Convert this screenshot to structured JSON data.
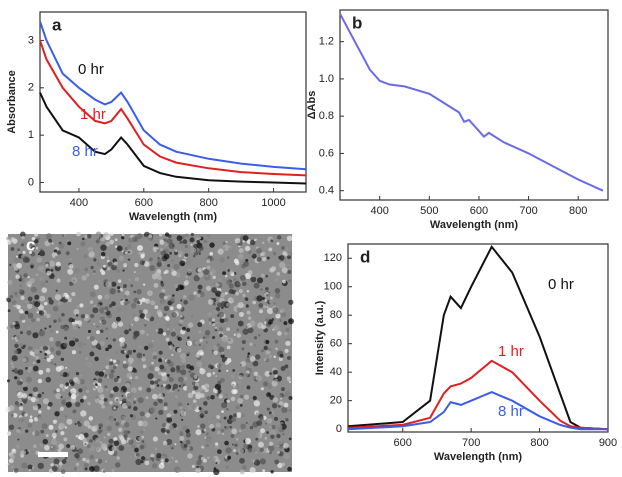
{
  "chart_data": [
    {
      "type": "line",
      "label": "a",
      "xlabel": "Wavelength (nm)",
      "ylabel": "Absorbance",
      "xlim": [
        280,
        1100
      ],
      "xticks": [
        400,
        600,
        800,
        1000
      ],
      "ylim": [
        -0.2,
        3.6
      ],
      "yticks": [
        0,
        1,
        2,
        3
      ],
      "x": [
        280,
        300,
        350,
        400,
        450,
        480,
        500,
        530,
        550,
        600,
        650,
        700,
        800,
        900,
        1000,
        1100
      ],
      "series": [
        {
          "name": "0 hr",
          "color": "#111111",
          "values": [
            1.9,
            1.6,
            1.1,
            0.95,
            0.65,
            0.6,
            0.7,
            0.95,
            0.8,
            0.35,
            0.2,
            0.12,
            0.05,
            0.02,
            0.0,
            -0.02
          ]
        },
        {
          "name": "1 hr",
          "color": "#e02020",
          "values": [
            3.0,
            2.6,
            2.0,
            1.6,
            1.3,
            1.25,
            1.3,
            1.55,
            1.35,
            0.8,
            0.55,
            0.42,
            0.3,
            0.22,
            0.18,
            0.15
          ]
        },
        {
          "name": "8 hr",
          "color": "#3a5ee8",
          "values": [
            3.4,
            3.0,
            2.3,
            2.0,
            1.75,
            1.65,
            1.7,
            1.9,
            1.7,
            1.1,
            0.8,
            0.65,
            0.5,
            0.4,
            0.33,
            0.28
          ]
        }
      ]
    },
    {
      "type": "line",
      "label": "b",
      "xlabel": "Wavelength (nm)",
      "ylabel": "ΔAbs",
      "xlim": [
        320,
        860
      ],
      "xticks": [
        400,
        500,
        600,
        700,
        800
      ],
      "ylim": [
        0.35,
        1.37
      ],
      "yticks": [
        0.4,
        0.6,
        0.8,
        {
          "value": 1,
          "label": "1.0"
        },
        1.2
      ],
      "x": [
        320,
        350,
        380,
        400,
        420,
        450,
        500,
        530,
        560,
        570,
        580,
        600,
        610,
        620,
        650,
        700,
        750,
        800,
        850
      ],
      "series": [
        {
          "color": "#6a6ae8",
          "values": [
            1.35,
            1.2,
            1.05,
            0.99,
            0.97,
            0.96,
            0.92,
            0.87,
            0.82,
            0.77,
            0.78,
            0.72,
            0.69,
            0.71,
            0.66,
            0.6,
            0.53,
            0.46,
            0.4
          ]
        }
      ]
    },
    {
      "type": "line",
      "label": "d",
      "xlabel": "Wavelength (nm)",
      "ylabel": "Intensity (a.u.)",
      "xlim": [
        520,
        900
      ],
      "xticks": [
        600,
        700,
        800,
        900
      ],
      "ylim": [
        -2,
        130
      ],
      "yticks": [
        0,
        20,
        40,
        60,
        80,
        100,
        120
      ],
      "x": [
        520,
        600,
        640,
        660,
        670,
        685,
        700,
        730,
        760,
        800,
        830,
        845,
        860,
        900
      ],
      "series": [
        {
          "name": "0 hr",
          "color": "#111111",
          "values": [
            2,
            5,
            20,
            80,
            93,
            85,
            100,
            128,
            110,
            65,
            25,
            5,
            1,
            0
          ]
        },
        {
          "name": "1 hr",
          "color": "#e02020",
          "values": [
            1,
            3,
            8,
            25,
            30,
            32,
            36,
            48,
            40,
            20,
            6,
            2,
            1,
            0
          ]
        },
        {
          "name": "8 hr",
          "color": "#3a5ee8",
          "values": [
            0,
            2,
            5,
            12,
            19,
            17,
            20,
            26,
            20,
            9,
            3,
            1,
            0,
            0
          ]
        }
      ]
    }
  ],
  "panels": {
    "c": {
      "label": "c"
    }
  }
}
